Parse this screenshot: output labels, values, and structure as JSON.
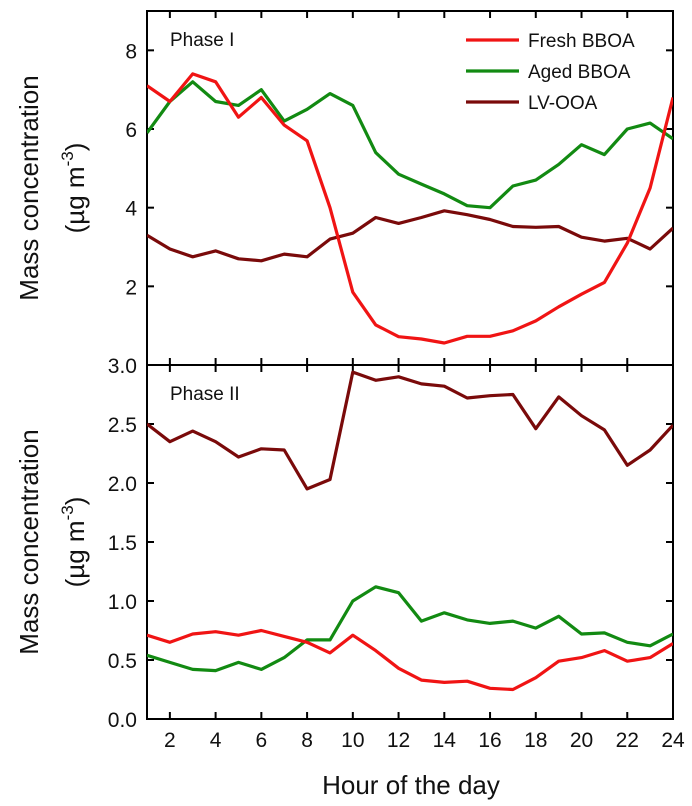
{
  "figure": {
    "xlabel": "Hour of the day",
    "colors": {
      "fresh_bboa": "#f01414",
      "aged_bboa": "#128a12",
      "lv_ooa": "#7a0a0a"
    }
  },
  "chart_data": [
    {
      "type": "line",
      "panel_label": "Phase I",
      "ylabel_line1": "Mass concentration",
      "ylabel_line2": "(µg m",
      "ylabel_superscript": "-3",
      "ylabel_line2_close": ")",
      "xlim": [
        1,
        24
      ],
      "ylim": [
        0,
        9
      ],
      "yticks": [
        2,
        4,
        6,
        8
      ],
      "xticks": [
        2,
        4,
        6,
        8,
        10,
        12,
        14,
        16,
        18,
        20,
        22,
        24
      ],
      "grid": false,
      "legend_position": "top-right",
      "x": [
        1,
        2,
        3,
        4,
        5,
        6,
        7,
        8,
        9,
        10,
        11,
        12,
        13,
        14,
        15,
        16,
        17,
        18,
        19,
        20,
        21,
        22,
        23,
        24
      ],
      "series": [
        {
          "name": "Fresh BBOA",
          "color_key": "fresh_bboa",
          "values": [
            7.1,
            6.7,
            7.4,
            7.2,
            6.3,
            6.8,
            6.1,
            5.7,
            4.0,
            1.85,
            1.02,
            0.72,
            0.66,
            0.56,
            0.73,
            0.73,
            0.87,
            1.12,
            1.48,
            1.8,
            2.1,
            3.1,
            4.5,
            6.8
          ]
        },
        {
          "name": "Aged BBOA",
          "color_key": "aged_bboa",
          "values": [
            5.9,
            6.7,
            7.2,
            6.7,
            6.6,
            7.0,
            6.2,
            6.5,
            6.9,
            6.6,
            5.4,
            4.85,
            4.6,
            4.35,
            4.05,
            4.0,
            4.55,
            4.7,
            5.1,
            5.6,
            5.35,
            6.0,
            6.15,
            5.75
          ]
        },
        {
          "name": "LV-OOA",
          "color_key": "lv_ooa",
          "values": [
            3.3,
            2.95,
            2.75,
            2.9,
            2.7,
            2.65,
            2.82,
            2.75,
            3.2,
            3.35,
            3.75,
            3.6,
            3.75,
            3.92,
            3.82,
            3.7,
            3.52,
            3.5,
            3.52,
            3.25,
            3.15,
            3.22,
            2.95,
            3.48
          ]
        }
      ]
    },
    {
      "type": "line",
      "panel_label": "Phase II",
      "ylabel_line1": "Mass concentration",
      "ylabel_line2": "(µg m",
      "ylabel_superscript": "-3",
      "ylabel_line2_close": ")",
      "xlim": [
        1,
        24
      ],
      "ylim": [
        0,
        3.0
      ],
      "yticks": [
        "0.0",
        "0.5",
        "1.0",
        "1.5",
        "2.0",
        "2.5",
        "3.0"
      ],
      "xticks": [
        2,
        4,
        6,
        8,
        10,
        12,
        14,
        16,
        18,
        20,
        22,
        24
      ],
      "grid": false,
      "x": [
        1,
        2,
        3,
        4,
        5,
        6,
        7,
        8,
        9,
        10,
        11,
        12,
        13,
        14,
        15,
        16,
        17,
        18,
        19,
        20,
        21,
        22,
        23,
        24
      ],
      "series": [
        {
          "name": "Fresh BBOA",
          "color_key": "fresh_bboa",
          "values": [
            0.71,
            0.65,
            0.72,
            0.74,
            0.71,
            0.75,
            0.7,
            0.65,
            0.56,
            0.71,
            0.58,
            0.43,
            0.33,
            0.31,
            0.32,
            0.26,
            0.25,
            0.35,
            0.49,
            0.52,
            0.58,
            0.49,
            0.52,
            0.64
          ]
        },
        {
          "name": "Aged BBOA",
          "color_key": "aged_bboa",
          "values": [
            0.54,
            0.48,
            0.42,
            0.41,
            0.48,
            0.42,
            0.52,
            0.67,
            0.67,
            1.0,
            1.12,
            1.07,
            0.83,
            0.9,
            0.84,
            0.81,
            0.83,
            0.77,
            0.87,
            0.72,
            0.73,
            0.65,
            0.62,
            0.72
          ]
        },
        {
          "name": "LV-OOA",
          "color_key": "lv_ooa",
          "values": [
            2.5,
            2.35,
            2.44,
            2.35,
            2.22,
            2.29,
            2.28,
            1.95,
            2.03,
            2.94,
            2.87,
            2.9,
            2.84,
            2.82,
            2.72,
            2.74,
            2.75,
            2.46,
            2.73,
            2.57,
            2.45,
            2.15,
            2.28,
            2.49
          ]
        }
      ]
    }
  ]
}
